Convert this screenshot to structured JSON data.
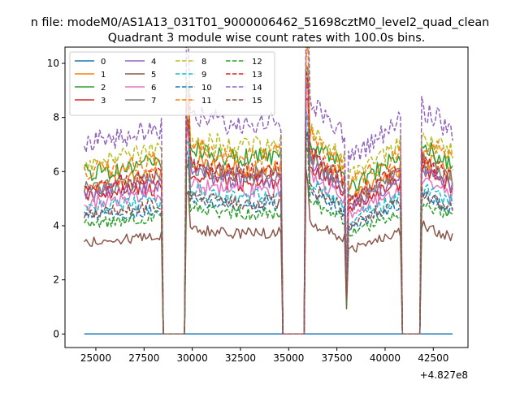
{
  "figure": {
    "suptitle": "n file: modeM0/AS1A13_031T01_9000006462_51698cztM0_level2_quad_clean"
  },
  "chart_data": {
    "type": "line",
    "title": "Quadrant 3 module wise count rates with 100.0s bins.",
    "xlabel": "",
    "ylabel": "",
    "offset_label": "+4.827e8",
    "xlim": [
      23400,
      44300
    ],
    "ylim": [
      -0.5,
      10.6
    ],
    "x_ticks": [
      25000,
      27500,
      30000,
      32500,
      35000,
      37500,
      40000,
      42500
    ],
    "x_tick_labels": [
      "25000",
      "27500",
      "30000",
      "32500",
      "35000",
      "37500",
      "40000",
      "42500"
    ],
    "y_ticks": [
      0,
      2,
      4,
      6,
      8,
      10
    ],
    "y_tick_labels": [
      "0",
      "2",
      "4",
      "6",
      "8",
      "10"
    ],
    "grid": false,
    "legend_position": "upper-left",
    "x_start": 24400,
    "x_step": 100,
    "x_end": 43500,
    "gaps": [
      [
        28500,
        29600
      ],
      [
        34700,
        35800
      ],
      [
        40900,
        41800
      ]
    ],
    "series": [
      {
        "name": "0",
        "color": "#1f77b4",
        "dash": false,
        "level": 0.0,
        "flat": true
      },
      {
        "name": "1",
        "color": "#ff7f0e",
        "dash": false,
        "level": 5.85
      },
      {
        "name": "2",
        "color": "#2ca02c",
        "dash": false,
        "level": 6.3
      },
      {
        "name": "3",
        "color": "#d62728",
        "dash": false,
        "level": 5.4
      },
      {
        "name": "4",
        "color": "#9467bd",
        "dash": false,
        "level": 5.5
      },
      {
        "name": "5",
        "color": "#8c564b",
        "dash": false,
        "level": 3.6
      },
      {
        "name": "6",
        "color": "#e377c2",
        "dash": false,
        "level": 5.1
      },
      {
        "name": "7",
        "color": "#7f7f7f",
        "dash": false,
        "level": 5.7
      },
      {
        "name": "8",
        "color": "#bcbd22",
        "dash": true,
        "level": 6.7
      },
      {
        "name": "9",
        "color": "#17becf",
        "dash": true,
        "level": 4.9
      },
      {
        "name": "10",
        "color": "#1f77b4",
        "dash": true,
        "level": 4.6
      },
      {
        "name": "11",
        "color": "#ff7f0e",
        "dash": true,
        "level": 6.4
      },
      {
        "name": "12",
        "color": "#2ca02c",
        "dash": true,
        "level": 4.3
      },
      {
        "name": "13",
        "color": "#d62728",
        "dash": true,
        "level": 5.8
      },
      {
        "name": "14",
        "color": "#9467bd",
        "dash": true,
        "level": 7.5
      },
      {
        "name": "15",
        "color": "#8c564b",
        "dash": true,
        "level": 4.7
      }
    ]
  }
}
